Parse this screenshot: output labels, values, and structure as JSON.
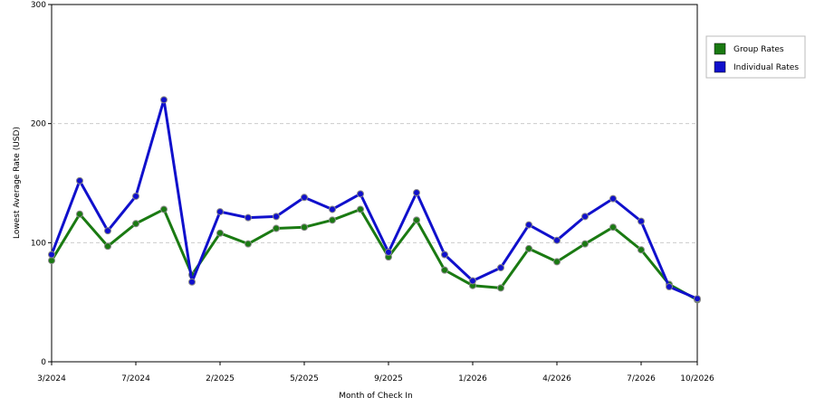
{
  "chart_data": {
    "type": "line",
    "xlabel": "Month of Check In",
    "ylabel": "Lowest Average Rate (USD)",
    "categories": [
      "3/2024",
      null,
      null,
      "7/2024",
      null,
      null,
      "2/2025",
      null,
      null,
      "5/2025",
      null,
      null,
      "9/2025",
      null,
      null,
      "1/2026",
      null,
      null,
      "4/2026",
      null,
      null,
      "7/2026",
      null,
      "10/2026"
    ],
    "series": [
      {
        "name": "Group Rates",
        "color": "#1a7a12",
        "values": [
          85,
          124,
          97,
          116,
          128,
          73,
          108,
          99,
          112,
          113,
          119,
          128,
          88,
          119,
          77,
          64,
          62,
          95,
          84,
          99,
          113,
          94,
          65,
          52
        ]
      },
      {
        "name": "Individual Rates",
        "color": "#1010cc",
        "values": [
          90,
          152,
          110,
          139,
          220,
          67,
          126,
          121,
          122,
          138,
          128,
          141,
          92,
          142,
          90,
          68,
          79,
          115,
          102,
          122,
          137,
          118,
          63,
          53
        ]
      }
    ],
    "ylim": [
      0,
      300
    ],
    "yticks": [
      0,
      100,
      200,
      300
    ],
    "grid": true,
    "legend": "right"
  }
}
